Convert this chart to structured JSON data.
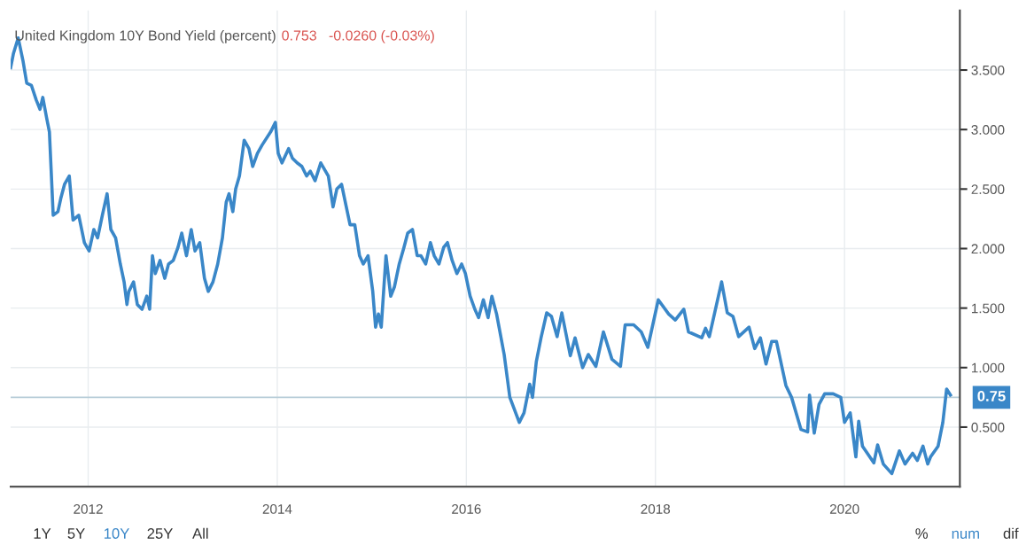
{
  "chart_data": {
    "type": "line",
    "title": "United Kingdom 10Y Bond Yield (percent)",
    "subtitle": "0.753   -0.0260 (-0.03%)",
    "series": [
      {
        "color": "#3a87c8",
        "x": [
          2011.18,
          2011.21,
          2011.26,
          2011.31,
          2011.35,
          2011.4,
          2011.45,
          2011.49,
          2011.52,
          2011.56,
          2011.59,
          2011.63,
          2011.68,
          2011.71,
          2011.75,
          2011.8,
          2011.84,
          2011.9,
          2011.96,
          2012.01,
          2012.06,
          2012.1,
          2012.15,
          2012.2,
          2012.24,
          2012.29,
          2012.34,
          2012.38,
          2012.41,
          2012.43,
          2012.48,
          2012.52,
          2012.57,
          2012.62,
          2012.65,
          2012.68,
          2012.71,
          2012.76,
          2012.81,
          2012.85,
          2012.9,
          2012.95,
          2012.99,
          2013.04,
          2013.09,
          2013.13,
          2013.18,
          2013.23,
          2013.27,
          2013.32,
          2013.37,
          2013.42,
          2013.46,
          2013.49,
          2013.53,
          2013.56,
          2013.6,
          2013.65,
          2013.7,
          2013.74,
          2013.79,
          2013.84,
          2013.93,
          2013.98,
          2014.01,
          2014.05,
          2014.12,
          2014.16,
          2014.21,
          2014.26,
          2014.31,
          2014.35,
          2014.4,
          2014.46,
          2014.54,
          2014.59,
          2014.63,
          2014.68,
          2014.73,
          2014.77,
          2014.82,
          2014.87,
          2014.91,
          2014.96,
          2015.01,
          2015.04,
          2015.07,
          2015.1,
          2015.15,
          2015.2,
          2015.24,
          2015.29,
          2015.34,
          2015.38,
          2015.43,
          2015.48,
          2015.52,
          2015.57,
          2015.62,
          2015.66,
          2015.71,
          2015.76,
          2015.8,
          2015.85,
          2015.9,
          2015.95,
          2015.99,
          2016.04,
          2016.09,
          2016.13,
          2016.18,
          2016.23,
          2016.27,
          2016.32,
          2016.4,
          2016.46,
          2016.56,
          2016.61,
          2016.67,
          2016.7,
          2016.74,
          2016.79,
          2016.85,
          2016.9,
          2016.96,
          2017.01,
          2017.1,
          2017.15,
          2017.23,
          2017.29,
          2017.37,
          2017.45,
          2017.54,
          2017.63,
          2017.68,
          2017.77,
          2017.85,
          2017.92,
          2018.03,
          2018.14,
          2018.21,
          2018.3,
          2018.35,
          2018.49,
          2018.53,
          2018.57,
          2018.7,
          2018.76,
          2018.82,
          2018.88,
          2018.99,
          2019.05,
          2019.11,
          2019.17,
          2019.23,
          2019.28,
          2019.38,
          2019.44,
          2019.54,
          2019.61,
          2019.63,
          2019.68,
          2019.73,
          2019.79,
          2019.88,
          2019.96,
          2020.0,
          2020.06,
          2020.12,
          2020.15,
          2020.19,
          2020.31,
          2020.35,
          2020.41,
          2020.5,
          2020.58,
          2020.64,
          2020.72,
          2020.77,
          2020.83,
          2020.88,
          2020.91,
          2020.99,
          2021.04,
          2021.08,
          2021.12
        ],
        "values": [
          3.52,
          3.64,
          3.77,
          3.58,
          3.39,
          3.37,
          3.25,
          3.17,
          3.27,
          3.1,
          2.98,
          2.28,
          2.31,
          2.42,
          2.54,
          2.61,
          2.24,
          2.28,
          2.05,
          1.98,
          2.16,
          2.09,
          2.28,
          2.46,
          2.16,
          2.09,
          1.87,
          1.72,
          1.53,
          1.64,
          1.72,
          1.53,
          1.49,
          1.6,
          1.49,
          1.94,
          1.79,
          1.9,
          1.75,
          1.87,
          1.9,
          2.01,
          2.13,
          1.94,
          2.16,
          1.98,
          2.05,
          1.75,
          1.64,
          1.72,
          1.87,
          2.09,
          2.39,
          2.46,
          2.31,
          2.5,
          2.61,
          2.91,
          2.84,
          2.69,
          2.8,
          2.87,
          2.98,
          3.06,
          2.8,
          2.72,
          2.84,
          2.76,
          2.72,
          2.69,
          2.61,
          2.65,
          2.57,
          2.72,
          2.61,
          2.35,
          2.5,
          2.54,
          2.35,
          2.2,
          2.2,
          1.94,
          1.87,
          1.94,
          1.64,
          1.34,
          1.45,
          1.34,
          1.94,
          1.6,
          1.68,
          1.87,
          2.01,
          2.13,
          2.16,
          1.94,
          1.94,
          1.87,
          2.05,
          1.94,
          1.87,
          2.01,
          2.05,
          1.9,
          1.79,
          1.87,
          1.79,
          1.6,
          1.49,
          1.42,
          1.57,
          1.42,
          1.6,
          1.45,
          1.11,
          0.75,
          0.54,
          0.62,
          0.86,
          0.75,
          1.05,
          1.25,
          1.46,
          1.43,
          1.26,
          1.46,
          1.1,
          1.25,
          1.0,
          1.11,
          1.01,
          1.3,
          1.07,
          1.01,
          1.36,
          1.36,
          1.3,
          1.17,
          1.57,
          1.45,
          1.4,
          1.49,
          1.3,
          1.25,
          1.33,
          1.26,
          1.72,
          1.46,
          1.43,
          1.26,
          1.34,
          1.16,
          1.25,
          1.03,
          1.22,
          1.22,
          0.85,
          0.75,
          0.48,
          0.46,
          0.77,
          0.45,
          0.69,
          0.78,
          0.78,
          0.75,
          0.54,
          0.62,
          0.25,
          0.55,
          0.34,
          0.2,
          0.35,
          0.19,
          0.11,
          0.3,
          0.19,
          0.28,
          0.22,
          0.34,
          0.19,
          0.25,
          0.34,
          0.54,
          0.82,
          0.77
        ]
      }
    ],
    "xlim": [
      2011.18,
      2021.22
    ],
    "xticks": [
      2012,
      2014,
      2016,
      2018,
      2020
    ],
    "ylim": [
      0,
      4.0
    ],
    "yticks": [
      {
        "value": 0.5,
        "label": "0.500"
      },
      {
        "value": 1.0,
        "label": "1.000"
      },
      {
        "value": 1.5,
        "label": "1.500"
      },
      {
        "value": 2.0,
        "label": "2.000"
      },
      {
        "value": 2.5,
        "label": "2.500"
      },
      {
        "value": 3.0,
        "label": "3.000"
      },
      {
        "value": 3.5,
        "label": "3.500"
      }
    ],
    "ref_lines": [
      {
        "axis": "y",
        "value": 0.75,
        "label": "0.75",
        "color": "#b7cdd8"
      }
    ],
    "grid": true,
    "legend": false,
    "annotations": [
      "1Y",
      "5Y",
      "10Y",
      "25Y",
      "All",
      "%",
      "num",
      "dif"
    ]
  }
}
